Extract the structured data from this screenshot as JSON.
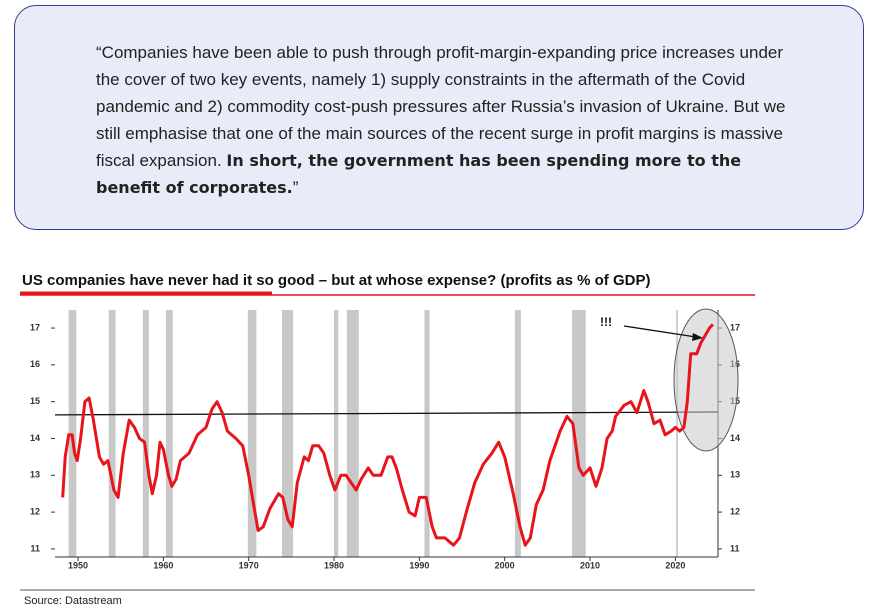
{
  "quote": {
    "text": "“Companies have been able to push through profit-margin-expanding price increases under the cover of two key events, namely 1) supply constraints in the aftermath of the Covid pandemic and 2) commodity cost-push pressures after Russia’s invasion of Ukraine. But we still emphasise that one of the main sources of the recent surge in profit margins is massive fiscal expansion.",
    "bold": "In short, the government has been spending more to the benefit of corporates.",
    "closing": "”"
  },
  "chart_data": {
    "type": "line",
    "title": "US companies have never had it so good – but at whose expense? (profits as % of GDP)",
    "source": "Source: Datastream",
    "annotation": "!!!",
    "xlim": [
      1947.3,
      2025.0
    ],
    "ylim": [
      10.78,
      17.49
    ],
    "xticks": [
      1950,
      1960,
      1970,
      1980,
      1990,
      2000,
      2010,
      2020
    ],
    "yticks": [
      11,
      12,
      13,
      14,
      15,
      16,
      17
    ],
    "recessions": [
      [
        1948.9,
        1949.8
      ],
      [
        1953.6,
        1954.4
      ],
      [
        1957.6,
        1958.3
      ],
      [
        1960.3,
        1961.1
      ],
      [
        1969.9,
        1970.9
      ],
      [
        1973.9,
        1975.2
      ],
      [
        1980.0,
        1980.5
      ],
      [
        1981.5,
        1982.9
      ],
      [
        1990.6,
        1991.2
      ],
      [
        2001.2,
        2001.9
      ],
      [
        2007.9,
        2009.5
      ],
      [
        2020.1,
        2020.3
      ]
    ],
    "series": [
      {
        "color": "#e8141b",
        "x": [
          1948.2,
          1948.5,
          1948.9,
          1949.3,
          1949.6,
          1949.9,
          1950.3,
          1950.8,
          1951.3,
          1951.8,
          1952.5,
          1953.0,
          1953.5,
          1954.2,
          1954.7,
          1955.3,
          1956.0,
          1956.6,
          1957.2,
          1957.8,
          1958.3,
          1958.7,
          1959.2,
          1959.6,
          1960.0,
          1960.6,
          1961.0,
          1961.5,
          1962.0,
          1963.0,
          1964.0,
          1965.0,
          1965.7,
          1966.3,
          1966.9,
          1967.5,
          1968.5,
          1969.3,
          1970.0,
          1970.5,
          1971.1,
          1971.7,
          1972.5,
          1973.5,
          1974.0,
          1974.6,
          1975.1,
          1975.7,
          1976.5,
          1977.0,
          1977.5,
          1978.2,
          1978.8,
          1979.5,
          1980.1,
          1980.8,
          1981.4,
          1982.0,
          1982.6,
          1983.2,
          1984.0,
          1984.6,
          1985.5,
          1986.3,
          1986.8,
          1987.3,
          1988.0,
          1988.8,
          1989.5,
          1990.0,
          1990.8,
          1991.5,
          1992.0,
          1993.0,
          1994.0,
          1994.7,
          1995.5,
          1996.5,
          1997.5,
          1998.5,
          1999.3,
          2000.0,
          2001.0,
          2001.8,
          2002.4,
          2003.0,
          2003.7,
          2004.5,
          2005.3,
          2006.5,
          2007.3,
          2008.0,
          2008.7,
          2009.2,
          2010.0,
          2010.7,
          2011.4,
          2012.0,
          2012.6,
          2013.0,
          2014.0,
          2014.8,
          2015.5,
          2016.3,
          2016.8,
          2017.5,
          2018.2,
          2018.8,
          2019.5,
          2020.0,
          2020.5,
          2021.0,
          2021.4,
          2021.8,
          2022.5,
          2023.0,
          2023.5,
          2024.0,
          2024.4
        ],
        "values": [
          12.4,
          13.5,
          14.1,
          14.1,
          13.6,
          13.4,
          14.0,
          15.0,
          15.1,
          14.5,
          13.5,
          13.3,
          13.4,
          12.6,
          12.4,
          13.6,
          14.5,
          14.3,
          14.0,
          13.9,
          13.0,
          12.5,
          13.0,
          13.9,
          13.7,
          13.0,
          12.7,
          12.9,
          13.4,
          13.6,
          14.1,
          14.3,
          14.8,
          15.0,
          14.7,
          14.2,
          14.0,
          13.8,
          13.0,
          12.3,
          11.5,
          11.6,
          12.1,
          12.5,
          12.4,
          11.8,
          11.6,
          12.8,
          13.5,
          13.4,
          13.8,
          13.8,
          13.6,
          13.0,
          12.6,
          13.0,
          13.0,
          12.8,
          12.6,
          12.9,
          13.2,
          13.0,
          13.0,
          13.5,
          13.5,
          13.2,
          12.6,
          12.0,
          11.9,
          12.4,
          12.4,
          11.6,
          11.3,
          11.3,
          11.1,
          11.3,
          12.0,
          12.8,
          13.3,
          13.6,
          13.9,
          13.5,
          12.5,
          11.6,
          11.1,
          11.3,
          12.2,
          12.6,
          13.4,
          14.2,
          14.6,
          14.4,
          13.2,
          13.0,
          13.2,
          12.7,
          13.2,
          14.0,
          14.2,
          14.6,
          14.9,
          15.0,
          14.7,
          15.3,
          15.0,
          14.4,
          14.5,
          14.1,
          14.2,
          14.3,
          14.2,
          14.3,
          15.0,
          16.3,
          16.3,
          16.6,
          16.8,
          17.0,
          17.1
        ]
      },
      {
        "color": "#111111",
        "x": [
          1947.3,
          2025.0
        ],
        "values": [
          14.64,
          14.72
        ]
      }
    ]
  }
}
